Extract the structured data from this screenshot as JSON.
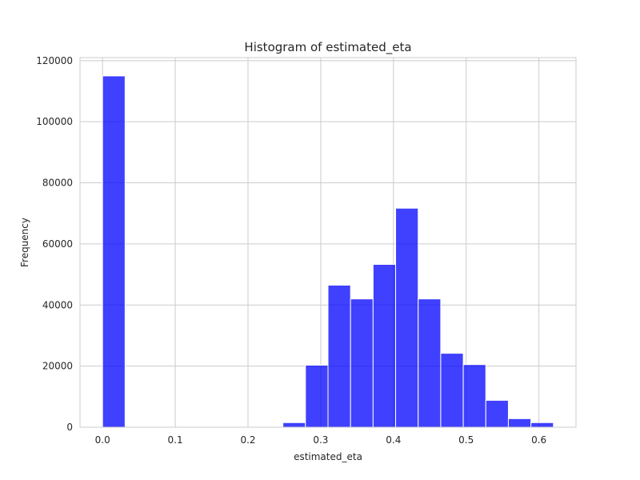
{
  "chart_data": {
    "type": "bar",
    "title": "Histogram of estimated_eta",
    "xlabel": "estimated_eta",
    "ylabel": "Frequency",
    "xlim": [
      -0.031,
      0.651
    ],
    "ylim": [
      0,
      121000
    ],
    "xticks": [
      0.0,
      0.1,
      0.2,
      0.3,
      0.4,
      0.5,
      0.6
    ],
    "xtick_labels": [
      "0.0",
      "0.1",
      "0.2",
      "0.3",
      "0.4",
      "0.5",
      "0.6"
    ],
    "yticks": [
      0,
      20000,
      40000,
      60000,
      80000,
      100000,
      120000
    ],
    "ytick_labels": [
      "0",
      "20000",
      "40000",
      "60000",
      "80000",
      "100000",
      "120000"
    ],
    "grid": true,
    "bar_color": "#0000ff",
    "bins": [
      {
        "x0": 0.0,
        "x1": 0.031,
        "value": 115000
      },
      {
        "x0": 0.031,
        "x1": 0.062,
        "value": 0
      },
      {
        "x0": 0.062,
        "x1": 0.093,
        "value": 0
      },
      {
        "x0": 0.093,
        "x1": 0.124,
        "value": 0
      },
      {
        "x0": 0.124,
        "x1": 0.155,
        "value": 0
      },
      {
        "x0": 0.155,
        "x1": 0.186,
        "value": 0
      },
      {
        "x0": 0.186,
        "x1": 0.217,
        "value": 0
      },
      {
        "x0": 0.217,
        "x1": 0.248,
        "value": 0
      },
      {
        "x0": 0.248,
        "x1": 0.279,
        "value": 1500
      },
      {
        "x0": 0.279,
        "x1": 0.31,
        "value": 20300
      },
      {
        "x0": 0.31,
        "x1": 0.341,
        "value": 46500
      },
      {
        "x0": 0.341,
        "x1": 0.372,
        "value": 42000
      },
      {
        "x0": 0.372,
        "x1": 0.403,
        "value": 53300
      },
      {
        "x0": 0.403,
        "x1": 0.434,
        "value": 71700
      },
      {
        "x0": 0.434,
        "x1": 0.465,
        "value": 42000
      },
      {
        "x0": 0.465,
        "x1": 0.496,
        "value": 24200
      },
      {
        "x0": 0.496,
        "x1": 0.527,
        "value": 20500
      },
      {
        "x0": 0.527,
        "x1": 0.558,
        "value": 8800
      },
      {
        "x0": 0.558,
        "x1": 0.589,
        "value": 2800
      },
      {
        "x0": 0.589,
        "x1": 0.62,
        "value": 1500
      }
    ]
  }
}
